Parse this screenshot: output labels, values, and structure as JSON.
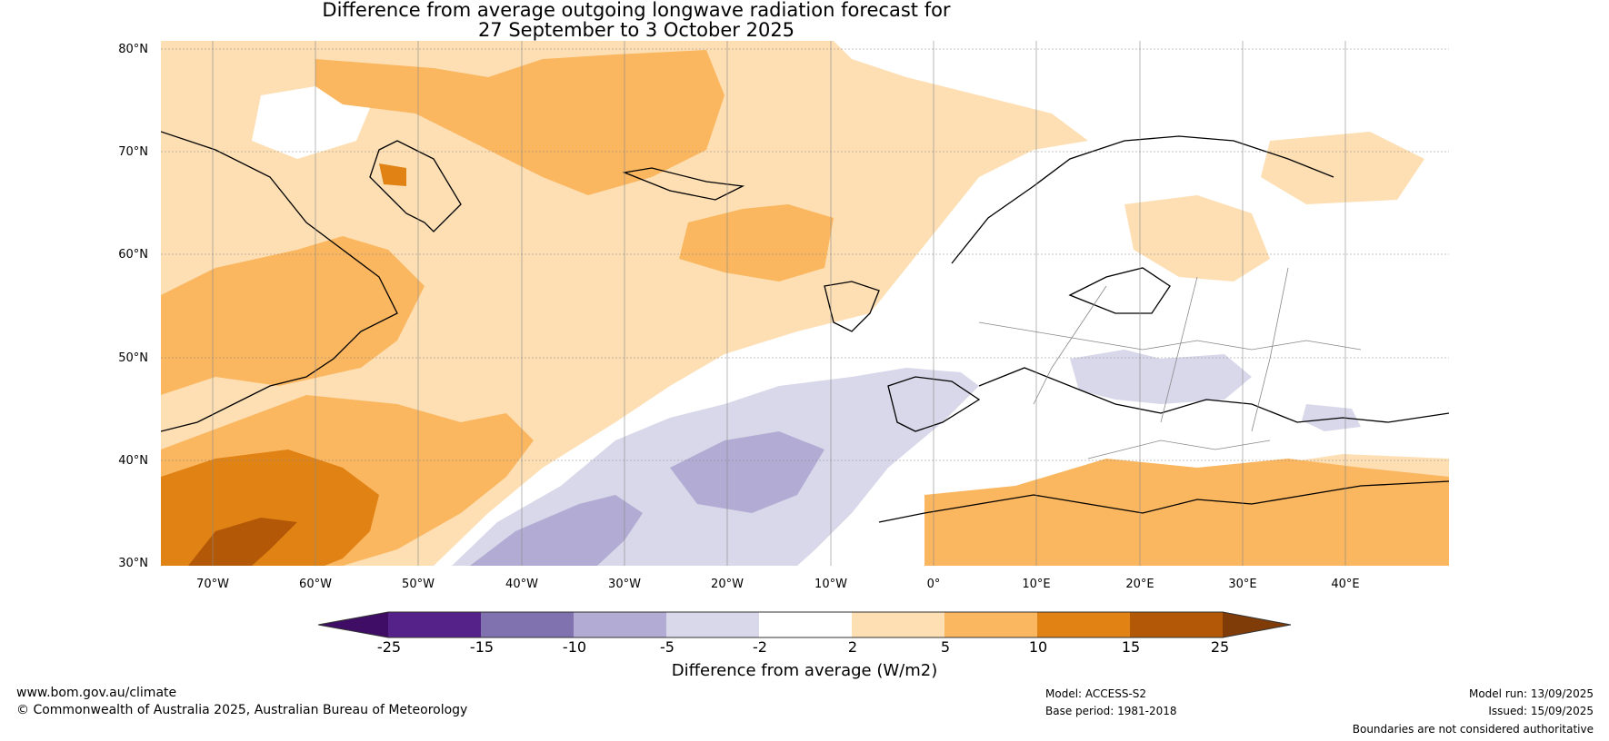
{
  "title": {
    "line1": "Difference from average outgoing longwave radiation forecast for",
    "line2": "27 September to 3 October 2025"
  },
  "map": {
    "lat_labels": [
      "80°N",
      "70°N",
      "60°N",
      "50°N",
      "40°N",
      "30°N"
    ],
    "lon_labels": [
      "70°W",
      "60°W",
      "50°W",
      "40°W",
      "30°W",
      "20°W",
      "10°W",
      "0°",
      "10°E",
      "20°E",
      "30°E",
      "40°E"
    ],
    "lat_range": [
      30,
      81
    ],
    "lon_range": [
      -75,
      50
    ]
  },
  "colorbar": {
    "label": "Difference from average (W/m2)",
    "ticks": [
      "-25",
      "-15",
      "-10",
      "-5",
      "-2",
      "2",
      "5",
      "10",
      "15",
      "25"
    ],
    "colors": [
      "#3f0d66",
      "#55228a",
      "#7f72af",
      "#b2abd3",
      "#d8d8ea",
      "#ffffff",
      "#fddfb3",
      "#fbb660",
      "#e08214",
      "#b35806",
      "#7f3b08"
    ]
  },
  "footer": {
    "website": "www.bom.gov.au/climate",
    "copyright": "© Commonwealth of Australia 2025, Australian Bureau of Meteorology",
    "model": "Model: ACCESS-S2",
    "base_period": "Base period: 1981-2018",
    "model_run": "Model run: 13/09/2025",
    "issued": "Issued: 15/09/2025",
    "disclaimer": "Boundaries are not considered authoritative"
  }
}
